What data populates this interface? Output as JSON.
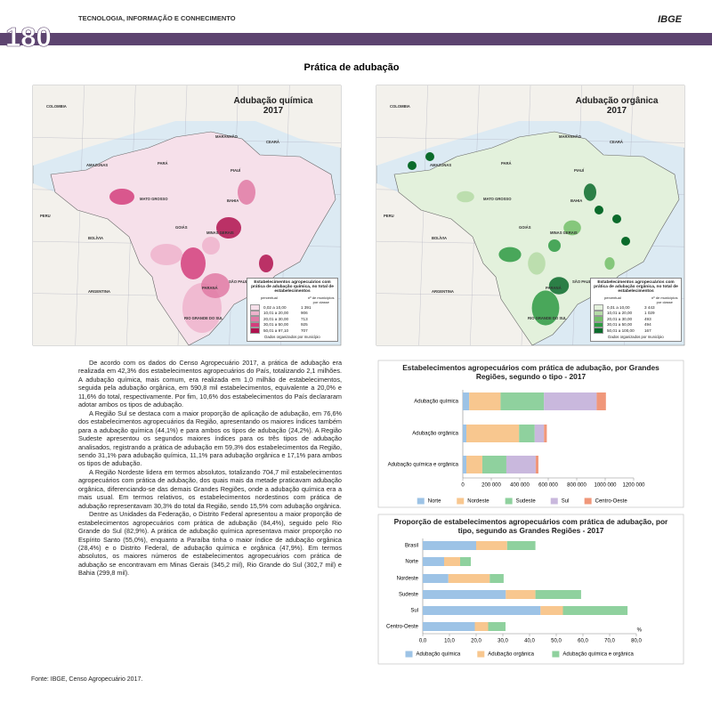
{
  "header": {
    "section": "TECNOLOGIA, INFORMAÇÃO E CONHECIMENTO",
    "page_number": "180",
    "logo": "IBGE"
  },
  "title": "Prática de adubação",
  "maps": [
    {
      "title": "Adubação química",
      "year": "2017",
      "colors": [
        "#f6e0ea",
        "#eeb3cc",
        "#e07aa5",
        "#d43e7c",
        "#b0124f"
      ],
      "legend": {
        "title": "Estabelecimentos agropecuários com prática de adubação química, no total de estabelecimentos",
        "col1": "percentual",
        "col2": "nº de municípios por classe",
        "classes": [
          [
            "0,02 a 10,00",
            "1 391"
          ],
          [
            "10,01 a 20,00",
            "906"
          ],
          [
            "20,01 a 30,00",
            "713"
          ],
          [
            "30,01 a 50,00",
            "925"
          ],
          [
            "50,01 a 97,10",
            "707"
          ]
        ],
        "note": "Dados organizados por município"
      }
    },
    {
      "title": "Adubação orgânica",
      "year": "2017",
      "colors": [
        "#e3f1dc",
        "#b5dba6",
        "#74c06a",
        "#2e9a43",
        "#0b6b2b"
      ],
      "legend": {
        "title": "Estabelecimentos agropecuários com prática de adubação orgânica, no total de estabelecimentos",
        "col1": "percentual",
        "col2": "nº de municípios por classe",
        "classes": [
          [
            "0,01 a 10,00",
            "3 443"
          ],
          [
            "10,01 a 20,00",
            "1 029"
          ],
          [
            "20,01 a 30,00",
            "493"
          ],
          [
            "30,01 a 50,00",
            "494"
          ],
          [
            "50,01 a 100,00",
            "167"
          ]
        ],
        "note": "Dados organizados por município"
      }
    }
  ],
  "map_labels": [
    "COLOMBIA",
    "PERU",
    "BOLÍVIA",
    "ARGENTINA",
    "AMAZONAS",
    "PARÁ",
    "MARANHÃO",
    "CEARÁ",
    "PIAUÍ",
    "MATO GROSSO",
    "BAHIA",
    "GOIÁS",
    "MINAS GERAIS",
    "SÃO PAULO",
    "PARANÁ",
    "RIO GRANDE DO SUL"
  ],
  "body": [
    "De acordo com os dados do Censo Agropecuário 2017, a prática de adubação era realizada em 42,3% dos estabelecimentos agropecuários do País, totalizando 2,1 milhões. A adubação química, mais comum, era realizada em 1,0 milhão de estabelecimentos, seguida pela adubação orgânica, em 590,8 mil estabelecimentos, equivalente a 20,0% e 11,6% do total, respectivamente. Por fim, 10,6% dos estabelecimentos do País declararam adotar ambos os tipos de adubação.",
    "A Região Sul se destaca com a maior proporção de aplicação de adubação, em 76,6% dos estabelecimentos agropecuários da Região, apresentando os maiores índices também para a adubação química (44,1%) e para ambos os tipos de adubação (24,2%). A Região Sudeste apresentou os segundos maiores índices para os três tipos de adubação analisados, registrando a prática de adubação em 59,3% dos estabelecimentos da Região, sendo 31,1% para adubação química, 11,1% para adubação orgânica e 17,1% para ambos os tipos de adubação.",
    "A Região Nordeste lidera em termos absolutos, totalizando 704,7 mil estabelecimentos agropecuários com prática de adubação, dos quais mais da metade praticavam adubação orgânica, diferenciando-se das demais Grandes Regiões, onde a adubação química era a mais usual. Em termos relativos, os estabelecimentos nordestinos com prática de adubação representavam 30,3% do total da Região, sendo 15,5% com adubação orgânica.",
    "Dentre as Unidades da Federação, o Distrito Federal apresentou a maior proporção de estabelecimentos agropecuários com prática de adubação (84,4%), seguido pelo Rio Grande do Sul (82,9%). A prática de adubação química apresentava maior proporção no Espírito Santo (55,0%), enquanto a Paraíba tinha o maior índice de adubação orgânica (28,4%) e o Distrito Federal, de adubação química e orgânica (47,9%). Em termos absolutos, os maiores números de estabelecimentos agropecuários com prática de adubação se encontravam em Minas Gerais (345,2 mil), Rio Grande do Sul (302,7 mil) e Bahia (299,8 mil)."
  ],
  "charts": [
    {
      "type": "bar",
      "orientation": "horizontal",
      "stacked": true,
      "grid": false,
      "legend_position": "bottom",
      "title": "Estabelecimentos agropecuários com prática de adubação, por Grandes Regiões, segundo o tipo - 2017",
      "categories": [
        "Adubação química",
        "Adubação orgânica",
        "Adubação química e orgânica"
      ],
      "series": [
        {
          "name": "Norte",
          "color": "#9dc3e6",
          "values": [
            45000,
            25000,
            25000
          ]
        },
        {
          "name": "Nordeste",
          "color": "#f8c78f",
          "values": [
            220000,
            370000,
            112000
          ]
        },
        {
          "name": "Sudeste",
          "color": "#8fd19e",
          "values": [
            305000,
            110000,
            169000
          ]
        },
        {
          "name": "Sul",
          "color": "#c9b8dd",
          "values": [
            370000,
            65000,
            206000
          ]
        },
        {
          "name": "Centro-Oeste",
          "color": "#f0977a",
          "values": [
            65000,
            20000,
            19000
          ]
        }
      ],
      "xlim": [
        0,
        1200000
      ],
      "xticks": [
        0,
        {
          "value": 200000,
          "label": "200 000"
        },
        {
          "value": 400000,
          "label": "400 000"
        },
        {
          "value": 600000,
          "label": "600 000"
        },
        {
          "value": 800000,
          "label": "800 000"
        },
        {
          "value": 1000000,
          "label": "1000 000"
        },
        {
          "value": 1200000,
          "label": "1200 000"
        }
      ]
    },
    {
      "type": "bar",
      "orientation": "horizontal",
      "stacked": true,
      "grid": false,
      "legend_position": "bottom",
      "title": "Proporção de estabelecimentos agropecuários com prática de adubação, por tipo, segundo as Grandes Regiões - 2017",
      "x_unit": "%",
      "categories": [
        "Brasil",
        "Norte",
        "Nordeste",
        "Sudeste",
        "Sul",
        "Centro-Oeste"
      ],
      "series": [
        {
          "name": "Adubação química",
          "color": "#9dc3e6",
          "values": [
            20.0,
            8.0,
            9.6,
            31.1,
            44.1,
            19.5
          ]
        },
        {
          "name": "Adubação orgânica",
          "color": "#f8c78f",
          "values": [
            11.6,
            6.0,
            15.5,
            11.1,
            8.4,
            5.0
          ]
        },
        {
          "name": "Adubação química e orgânica",
          "color": "#8fd19e",
          "values": [
            10.6,
            4.0,
            5.2,
            17.1,
            24.2,
            6.5
          ]
        }
      ],
      "xlim": [
        0,
        80
      ],
      "xticks": [
        {
          "value": 0,
          "label": "0,0"
        },
        {
          "value": 10,
          "label": "10,0"
        },
        {
          "value": 20,
          "label": "20,0"
        },
        {
          "value": 30,
          "label": "30,0"
        },
        {
          "value": 40,
          "label": "40,0"
        },
        {
          "value": 50,
          "label": "50,0"
        },
        {
          "value": 60,
          "label": "60,0"
        },
        {
          "value": 70,
          "label": "70,0"
        },
        {
          "value": 80,
          "label": "80,0"
        }
      ]
    }
  ],
  "source": "Fonte: IBGE, Censo Agropecuário 2017."
}
